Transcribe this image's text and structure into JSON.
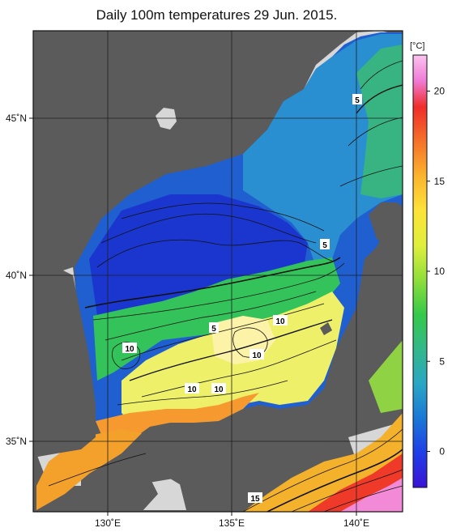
{
  "title": "Daily 100m temperatures 29 Jun. 2015.",
  "colorbar": {
    "unit": "[°C]",
    "min": -2,
    "max": 22,
    "ticks": [
      "20",
      "15",
      "10",
      "5",
      "0"
    ],
    "tick_values": [
      20,
      15,
      10,
      5,
      0
    ],
    "colors": [
      "#3a12d6",
      "#1f3ee6",
      "#1a78d6",
      "#2aa6c4",
      "#33b889",
      "#35c94a",
      "#8fde3b",
      "#e0ef3c",
      "#fde33a",
      "#fbb42e",
      "#f5722a",
      "#ef2d2a",
      "#f07ad6",
      "#fbc4ef"
    ]
  },
  "axes": {
    "lat_labels": [
      "45˚N",
      "40˚N",
      "35˚N"
    ],
    "lon_labels": [
      "130˚E",
      "135˚E",
      "140˚E"
    ]
  },
  "contour_labels": [
    "5",
    "5",
    "5",
    "10",
    "10",
    "10",
    "10",
    "10",
    "15"
  ],
  "map_colors": {
    "land": "#5b5b5b",
    "no_data": "#d7d7d7",
    "grid": "#1f1f1f"
  }
}
